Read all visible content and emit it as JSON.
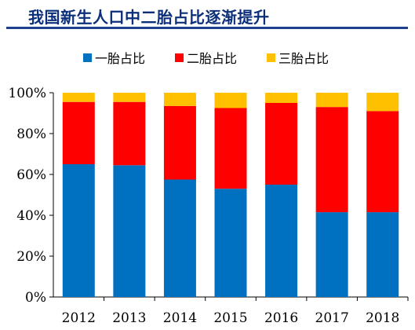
{
  "title": "我国新生人口中二胎占比逐渐提升",
  "colors": {
    "first": "#0070c0",
    "second": "#ff0000",
    "third": "#ffc000",
    "title": "#0b2f7a",
    "rule": "#1f3f8f"
  },
  "chart_data": {
    "type": "bar",
    "stacked": true,
    "percent": true,
    "categories": [
      "2012",
      "2013",
      "2014",
      "2015",
      "2016",
      "2017",
      "2018"
    ],
    "series": [
      {
        "name": "一胎占比",
        "values": [
          65,
          64.5,
          57.5,
          53,
          55,
          41.5,
          41.5
        ]
      },
      {
        "name": "二胎占比",
        "values": [
          30.5,
          31,
          36,
          39.5,
          40,
          51.5,
          49.5
        ]
      },
      {
        "name": "三胎占比",
        "values": [
          4.5,
          4.5,
          6.5,
          7.5,
          5,
          7,
          9
        ]
      }
    ],
    "ylim": [
      0,
      100
    ],
    "yticks": [
      "0%",
      "20%",
      "40%",
      "60%",
      "80%",
      "100%"
    ],
    "legend_position": "top",
    "grid": false
  }
}
